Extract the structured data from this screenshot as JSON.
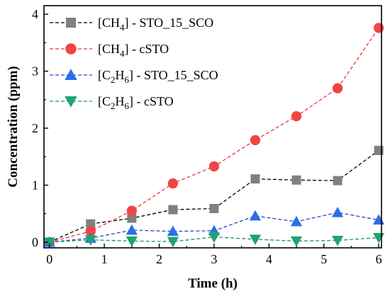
{
  "chart_data": {
    "type": "line",
    "xlabel": "Time (h)",
    "ylabel": "Concentration (ppm)",
    "xlim": [
      -0.1,
      6.05
    ],
    "ylim": [
      -0.1,
      4.15
    ],
    "xticks": [
      0,
      1,
      2,
      3,
      4,
      5,
      6
    ],
    "yticks": [
      0,
      1,
      2,
      3,
      4
    ],
    "legend_position": "top-left",
    "x": [
      0,
      0.75,
      1.5,
      2.25,
      3,
      3.75,
      4.5,
      5.25,
      6
    ],
    "series": [
      {
        "name_main": "[CH",
        "name_sub": "4",
        "name_rest": "] - STO_15_SCO",
        "marker": "square",
        "color": "#808080",
        "line_color": "#000000",
        "values": [
          0,
          0.32,
          0.42,
          0.57,
          0.59,
          1.11,
          1.09,
          1.08,
          1.61
        ]
      },
      {
        "name_main": "[CH",
        "name_sub": "4",
        "name_rest": "] - cSTO",
        "marker": "circle",
        "color": "#f04545",
        "line_color": "#e8383d",
        "values": [
          0,
          0.19,
          0.55,
          1.03,
          1.33,
          1.79,
          2.21,
          2.7,
          3.76
        ]
      },
      {
        "name_main": "[C",
        "name_sub": "2",
        "name_rest": "H",
        "name_sub2": "6",
        "name_rest2": "] - STO_15_SCO",
        "marker": "triangle-up",
        "color": "#2d6ee8",
        "line_color": "#2447c8",
        "values": [
          0,
          0.07,
          0.21,
          0.19,
          0.2,
          0.46,
          0.36,
          0.52,
          0.39
        ]
      },
      {
        "name_main": "[C",
        "name_sub": "2",
        "name_rest": "H",
        "name_sub2": "6",
        "name_rest2": "] - cSTO",
        "marker": "triangle-down",
        "color": "#1fa46f",
        "line_color": "#1f8f5f",
        "values": [
          0,
          0.04,
          0.02,
          0.01,
          0.09,
          0.05,
          0.02,
          0.03,
          0.08
        ]
      }
    ]
  }
}
